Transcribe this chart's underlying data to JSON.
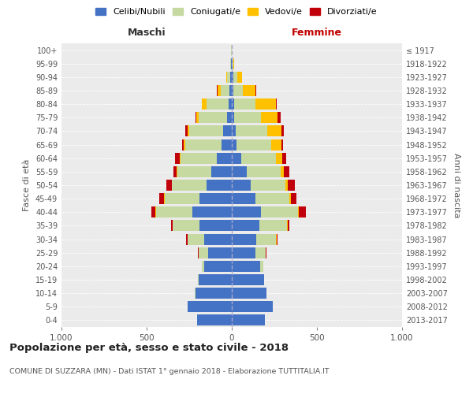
{
  "age_groups": [
    "0-4",
    "5-9",
    "10-14",
    "15-19",
    "20-24",
    "25-29",
    "30-34",
    "35-39",
    "40-44",
    "45-49",
    "50-54",
    "55-59",
    "60-64",
    "65-69",
    "70-74",
    "75-79",
    "80-84",
    "85-89",
    "90-94",
    "95-99",
    "100+"
  ],
  "birth_years": [
    "2013-2017",
    "2008-2012",
    "2003-2007",
    "1998-2002",
    "1993-1997",
    "1988-1992",
    "1983-1987",
    "1978-1982",
    "1973-1977",
    "1968-1972",
    "1963-1967",
    "1958-1962",
    "1953-1957",
    "1948-1952",
    "1943-1947",
    "1938-1942",
    "1933-1937",
    "1928-1932",
    "1923-1927",
    "1918-1922",
    "≤ 1917"
  ],
  "males": {
    "celibi": [
      205,
      260,
      215,
      195,
      160,
      140,
      160,
      190,
      230,
      190,
      150,
      120,
      90,
      60,
      50,
      30,
      20,
      12,
      8,
      4,
      2
    ],
    "coniugati": [
      0,
      0,
      1,
      2,
      15,
      55,
      100,
      155,
      215,
      205,
      200,
      200,
      210,
      215,
      200,
      165,
      130,
      55,
      18,
      5,
      1
    ],
    "vedovi": [
      0,
      0,
      0,
      0,
      1,
      1,
      1,
      1,
      2,
      2,
      2,
      3,
      5,
      8,
      10,
      15,
      25,
      18,
      5,
      1,
      0
    ],
    "divorziati": [
      0,
      0,
      0,
      0,
      1,
      2,
      8,
      10,
      25,
      30,
      30,
      20,
      30,
      10,
      12,
      5,
      3,
      2,
      1,
      0,
      0
    ]
  },
  "females": {
    "nubili": [
      195,
      240,
      205,
      190,
      165,
      140,
      145,
      160,
      170,
      140,
      110,
      90,
      55,
      30,
      25,
      15,
      12,
      10,
      8,
      4,
      1
    ],
    "coniugate": [
      0,
      0,
      1,
      2,
      18,
      60,
      115,
      165,
      220,
      200,
      205,
      195,
      205,
      200,
      185,
      155,
      125,
      55,
      25,
      5,
      1
    ],
    "vedove": [
      0,
      0,
      0,
      0,
      1,
      1,
      2,
      3,
      5,
      8,
      15,
      20,
      35,
      60,
      80,
      100,
      120,
      75,
      25,
      5,
      0
    ],
    "divorziate": [
      0,
      0,
      0,
      0,
      1,
      2,
      8,
      10,
      40,
      30,
      40,
      35,
      25,
      10,
      15,
      15,
      5,
      5,
      2,
      0,
      0
    ]
  },
  "colors": {
    "celibi_nubili": "#4472c4",
    "coniugati": "#c5d9a0",
    "vedovi": "#ffc000",
    "divorziati": "#c0000b"
  },
  "title": "Popolazione per età, sesso e stato civile - 2018",
  "subtitle": "COMUNE DI SUZZARA (MN) - Dati ISTAT 1° gennaio 2018 - Elaborazione TUTTITALIA.IT",
  "xlabel_left": "Maschi",
  "xlabel_right": "Femmine",
  "ylabel_left": "Fasce di età",
  "ylabel_right": "Anni di nascita",
  "xlim": 1000,
  "bg_color": "#ffffff",
  "plot_bg_color": "#ebebeb",
  "grid_color": "#ffffff",
  "legend_labels": [
    "Celibi/Nubili",
    "Coniugati/e",
    "Vedovi/e",
    "Divorziati/e"
  ]
}
